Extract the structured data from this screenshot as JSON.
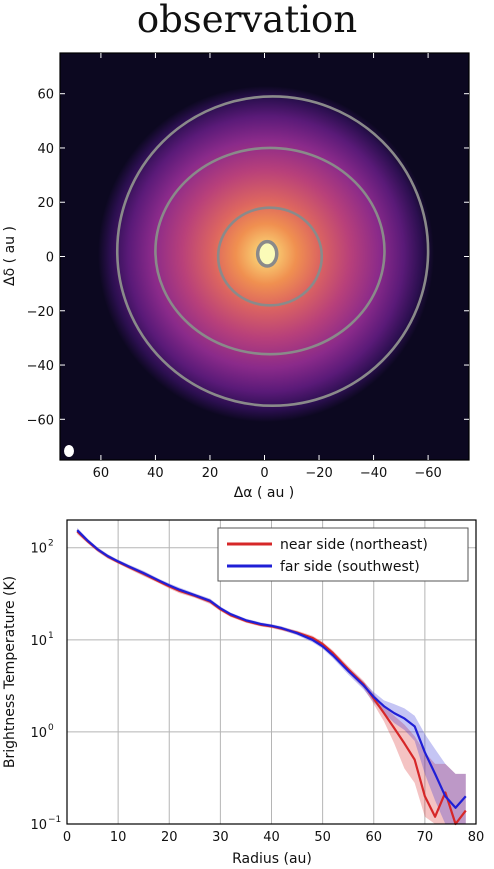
{
  "title": "observation",
  "chart_data": [
    {
      "type": "heatmap",
      "xlabel": "Δα ( au )",
      "ylabel": "Δδ ( au )",
      "xlim": [
        75,
        -75
      ],
      "ylim": [
        -75,
        75
      ],
      "x_ticks": [
        60,
        40,
        20,
        0,
        -20,
        -40,
        -60
      ],
      "x_tick_labels": [
        "60",
        "40",
        "20",
        "0",
        "−20",
        "−40",
        "−60"
      ],
      "y_ticks": [
        60,
        40,
        20,
        0,
        -20,
        -40,
        -60
      ],
      "y_tick_labels": [
        "60",
        "40",
        "20",
        "0",
        "−20",
        "−40",
        "−60"
      ],
      "colormap": [
        "#0c0820",
        "#2b0f4f",
        "#5a1a78",
        "#8a2a8a",
        "#b8407a",
        "#dc6560",
        "#f09050",
        "#f8c870",
        "#fcfdbf"
      ],
      "contour_color": "#8a8a8a",
      "beam": "white ellipse in lower-left corner",
      "contours": [
        {
          "level": "outer",
          "center": [
            -3,
            2
          ],
          "radius_x": 57,
          "radius_y": 57
        },
        {
          "level": "middle",
          "center": [
            -2,
            2
          ],
          "radius_x": 42,
          "radius_y": 38
        },
        {
          "level": "inner",
          "center": [
            -2,
            0
          ],
          "radius_x": 19,
          "radius_y": 18
        },
        {
          "level": "peak",
          "center": [
            -1,
            1
          ],
          "radius_x": 3.5,
          "radius_y": 4.5
        }
      ]
    },
    {
      "type": "line",
      "xlabel": "Radius (au)",
      "ylabel": "Brightness Temperature (K)",
      "xlim": [
        0,
        80
      ],
      "ylim": [
        0.1,
        200
      ],
      "yscale": "log",
      "grid": true,
      "legend": "top-right",
      "x_ticks": [
        0,
        10,
        20,
        30,
        40,
        50,
        60,
        70,
        80
      ],
      "x_tick_labels": [
        "0",
        "10",
        "20",
        "30",
        "40",
        "50",
        "60",
        "70",
        "80"
      ],
      "y_ticks": [
        0.1,
        1,
        10,
        100
      ],
      "y_tick_labels": [
        "10",
        "10",
        "10",
        "10"
      ],
      "y_tick_exponents": [
        "−1",
        "0",
        "1",
        "2"
      ],
      "series": [
        {
          "name": "near side (northeast)",
          "color": "#d62728",
          "x": [
            2,
            4,
            6,
            8,
            10,
            12,
            15,
            18,
            20,
            22,
            25,
            28,
            30,
            32,
            35,
            38,
            40,
            42,
            45,
            48,
            50,
            52,
            55,
            58,
            60,
            62,
            64,
            66,
            68,
            70,
            72,
            74,
            76,
            78
          ],
          "y": [
            150,
            118,
            95,
            80,
            70,
            62,
            52,
            43,
            38,
            34,
            30,
            26,
            21.5,
            18.5,
            16,
            14.5,
            14,
            13.2,
            12,
            10.5,
            9,
            7.2,
            4.8,
            3.3,
            2.3,
            1.6,
            1.1,
            0.75,
            0.5,
            0.2,
            0.12,
            0.22,
            0.1,
            0.14
          ],
          "lower": [
            140,
            112,
            90,
            76,
            67,
            59,
            49,
            41,
            36,
            32,
            28.5,
            24.5,
            20.5,
            17.7,
            15.3,
            13.9,
            13.4,
            12.6,
            11.4,
            9.9,
            8.5,
            6.7,
            4.4,
            3.0,
            2.0,
            1.3,
            0.75,
            0.4,
            0.28,
            0.12,
            0.1,
            0.1,
            0.1,
            0.1
          ],
          "upper": [
            160,
            124,
            100,
            84,
            73,
            65,
            55,
            45,
            40,
            36,
            31.5,
            27.5,
            22.5,
            19.3,
            16.7,
            15.1,
            14.6,
            13.8,
            12.6,
            11.1,
            9.5,
            7.7,
            5.2,
            3.6,
            2.6,
            1.9,
            1.5,
            1.2,
            0.9,
            0.6,
            0.45,
            0.45,
            0.35,
            0.35
          ]
        },
        {
          "name": "far side (southwest)",
          "color": "#1f1fd6",
          "x": [
            2,
            4,
            6,
            8,
            10,
            12,
            15,
            18,
            20,
            22,
            25,
            28,
            30,
            32,
            35,
            38,
            40,
            42,
            45,
            48,
            50,
            52,
            55,
            58,
            60,
            62,
            64,
            66,
            68,
            70,
            72,
            74,
            76,
            78
          ],
          "y": [
            155,
            120,
            96,
            81,
            71,
            63,
            53,
            44,
            39,
            35,
            30.5,
            26.5,
            22,
            19,
            16.3,
            14.8,
            14.2,
            13.4,
            11.8,
            10,
            8.5,
            6.8,
            4.6,
            3.2,
            2.4,
            1.9,
            1.6,
            1.4,
            1.15,
            0.6,
            0.35,
            0.2,
            0.15,
            0.2
          ],
          "lower": [
            145,
            114,
            91,
            77,
            68,
            60,
            50,
            42,
            37,
            33,
            29,
            25,
            21,
            18.2,
            15.6,
            14.2,
            13.6,
            12.8,
            11.2,
            9.4,
            8,
            6.3,
            4.2,
            2.9,
            2.1,
            1.6,
            1.25,
            1.05,
            0.8,
            0.35,
            0.18,
            0.1,
            0.1,
            0.1
          ],
          "upper": [
            165,
            126,
            101,
            85,
            74,
            66,
            56,
            46,
            41,
            37,
            32,
            28,
            23,
            19.8,
            17,
            15.4,
            14.8,
            14,
            12.4,
            10.6,
            9,
            7.3,
            5,
            3.5,
            2.7,
            2.2,
            2,
            1.8,
            1.5,
            0.95,
            0.65,
            0.45,
            0.35,
            0.35
          ]
        }
      ]
    }
  ]
}
